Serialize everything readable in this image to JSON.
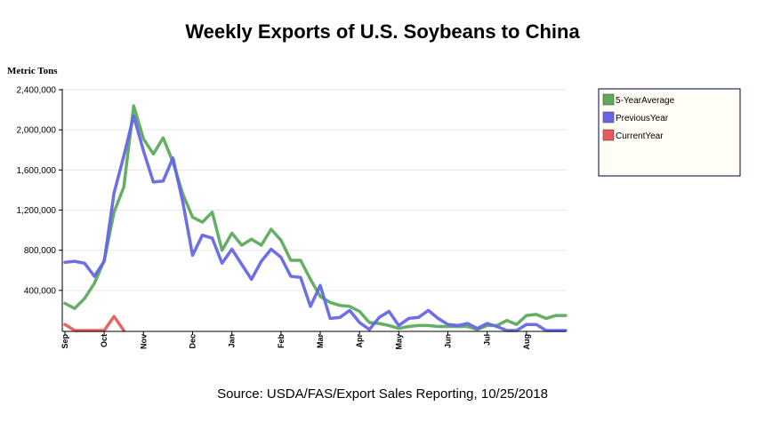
{
  "chart_data": {
    "type": "line",
    "title": "Weekly Exports of U.S. Soybeans to China",
    "ylabel": "Metric Tons",
    "xlabel": "",
    "source": "Source: USDA/FAS/Export Sales Reporting, 10/25/2018",
    "ylim": [
      0,
      2400000
    ],
    "yticks": [
      {
        "value": 400000,
        "label": "400,000"
      },
      {
        "value": 800000,
        "label": "800,000"
      },
      {
        "value": 1200000,
        "label": "1,200,000"
      },
      {
        "value": 1600000,
        "label": "1,600,000"
      },
      {
        "value": 2000000,
        "label": "2,000,000"
      },
      {
        "value": 2400000,
        "label": "2,400,000"
      }
    ],
    "week_count": 52,
    "month_ticks": [
      {
        "label": "Sep",
        "week": 0
      },
      {
        "label": "Oct",
        "week": 4
      },
      {
        "label": "Nov",
        "week": 8
      },
      {
        "label": "Dec",
        "week": 13
      },
      {
        "label": "Jan",
        "week": 17
      },
      {
        "label": "Feb",
        "week": 22
      },
      {
        "label": "Mar",
        "week": 26
      },
      {
        "label": "Apr",
        "week": 30
      },
      {
        "label": "May",
        "week": 34
      },
      {
        "label": "Jun",
        "week": 39
      },
      {
        "label": "Jul",
        "week": 43
      },
      {
        "label": "Aug",
        "week": 47
      }
    ],
    "grid": true,
    "legend_position": "top-right",
    "series": [
      {
        "name": "5-YearAverage",
        "color": "#5cab5c",
        "values": [
          270000,
          220000,
          320000,
          470000,
          700000,
          1180000,
          1430000,
          2240000,
          1910000,
          1760000,
          1920000,
          1680000,
          1360000,
          1130000,
          1080000,
          1180000,
          800000,
          970000,
          850000,
          910000,
          850000,
          1010000,
          900000,
          700000,
          700000,
          510000,
          340000,
          280000,
          250000,
          240000,
          190000,
          80000,
          70000,
          50000,
          20000,
          40000,
          50000,
          50000,
          40000,
          40000,
          40000,
          40000,
          10000,
          50000,
          50000,
          100000,
          60000,
          150000,
          160000,
          120000,
          150000,
          150000
        ]
      },
      {
        "name": "PreviousYear",
        "color": "#6666e6",
        "values": [
          680000,
          690000,
          670000,
          540000,
          690000,
          1370000,
          1740000,
          2140000,
          1790000,
          1480000,
          1490000,
          1720000,
          1280000,
          750000,
          950000,
          920000,
          670000,
          810000,
          660000,
          510000,
          690000,
          810000,
          730000,
          540000,
          530000,
          240000,
          450000,
          120000,
          130000,
          200000,
          80000,
          10000,
          130000,
          190000,
          50000,
          120000,
          130000,
          200000,
          120000,
          60000,
          50000,
          70000,
          20000,
          70000,
          40000,
          0,
          0,
          60000,
          60000,
          0,
          0,
          0
        ]
      },
      {
        "name": "CurrentYear",
        "color": "#e85c5c",
        "values": [
          60000,
          0,
          0,
          0,
          0,
          140000,
          0
        ]
      }
    ]
  }
}
